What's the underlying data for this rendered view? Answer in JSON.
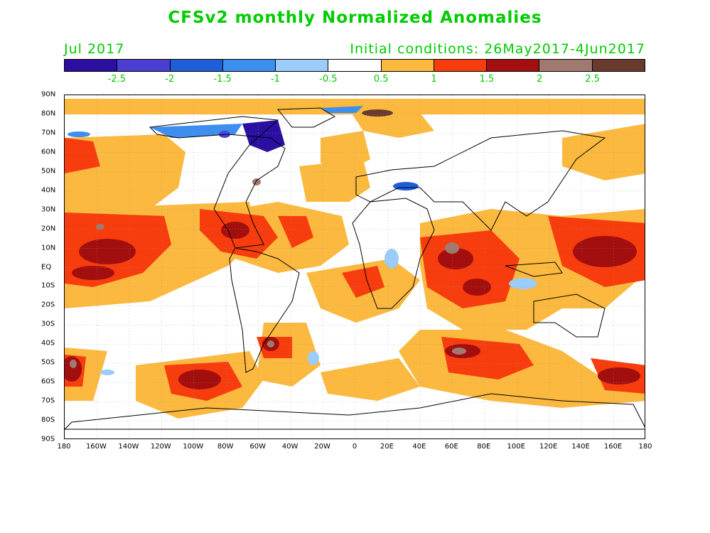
{
  "title": "CFSv2 monthly Normalized Anomalies",
  "month": "Jul 2017",
  "initial_conditions": "Initial conditions: 26May2017-4Jun2017",
  "colorbar": {
    "colors": [
      "#2a0fa0",
      "#4a3fd0",
      "#1e5fd8",
      "#3c8ef0",
      "#9cccf8",
      "#ffffff",
      "#fbb93f",
      "#f73c0d",
      "#a30e0e",
      "#a07a6e",
      "#6a3a2e"
    ],
    "labels": [
      "-2.5",
      "-2",
      "-1.5",
      "-1",
      "-0.5",
      "0.5",
      "1",
      "1.5",
      "2",
      "2.5"
    ]
  },
  "lat_labels": [
    "90N",
    "80N",
    "70N",
    "60N",
    "50N",
    "40N",
    "30N",
    "20N",
    "10N",
    "EQ",
    "10S",
    "20S",
    "30S",
    "40S",
    "50S",
    "60S",
    "70S",
    "80S",
    "90S"
  ],
  "lon_labels": [
    "180",
    "160W",
    "140W",
    "120W",
    "100W",
    "80W",
    "60W",
    "40W",
    "20W",
    "0",
    "20E",
    "40E",
    "60E",
    "80E",
    "100E",
    "120E",
    "140E",
    "160E",
    "180"
  ]
}
